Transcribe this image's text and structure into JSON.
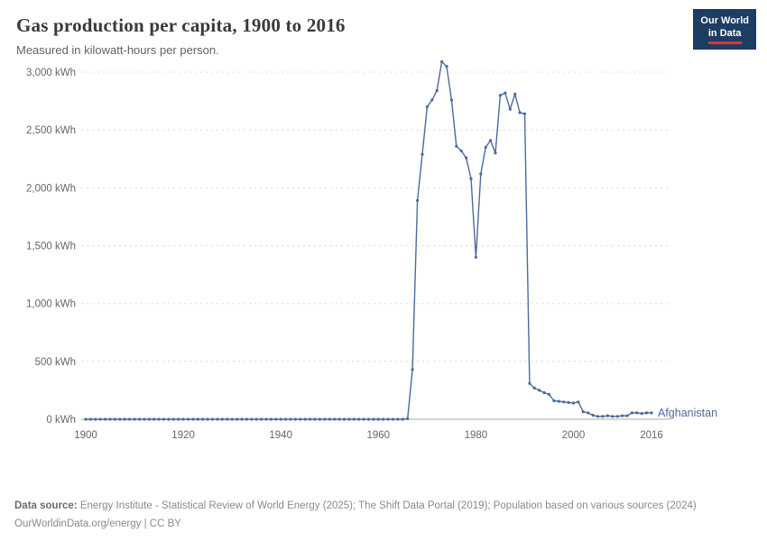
{
  "header": {
    "title": "Gas production per capita, 1900 to 2016",
    "subtitle": "Measured in kilowatt-hours per person.",
    "logo": {
      "line1": "Our World",
      "line2": "in Data"
    }
  },
  "chart_data": {
    "type": "line",
    "title": "Gas production per capita, 1900 to 2016",
    "ylabel": "kilowatt-hours per person",
    "xlim": [
      1900,
      2016
    ],
    "ylim": [
      0,
      3000
    ],
    "x_ticks": [
      1900,
      1920,
      1940,
      1960,
      1980,
      2000,
      2016
    ],
    "y_ticks": [
      0,
      500,
      1000,
      1500,
      2000,
      2500,
      3000
    ],
    "y_tick_suffix": " kWh",
    "grid": "dashed-horizontal",
    "legend_position": "end-of-line",
    "line_color": "#4C6A9C",
    "series": [
      {
        "name": "Afghanistan",
        "x": [
          1900,
          1901,
          1902,
          1903,
          1904,
          1905,
          1906,
          1907,
          1908,
          1909,
          1910,
          1911,
          1912,
          1913,
          1914,
          1915,
          1916,
          1917,
          1918,
          1919,
          1920,
          1921,
          1922,
          1923,
          1924,
          1925,
          1926,
          1927,
          1928,
          1929,
          1930,
          1931,
          1932,
          1933,
          1934,
          1935,
          1936,
          1937,
          1938,
          1939,
          1940,
          1941,
          1942,
          1943,
          1944,
          1945,
          1946,
          1947,
          1948,
          1949,
          1950,
          1951,
          1952,
          1953,
          1954,
          1955,
          1956,
          1957,
          1958,
          1959,
          1960,
          1961,
          1962,
          1963,
          1964,
          1965,
          1966,
          1967,
          1968,
          1969,
          1970,
          1971,
          1972,
          1973,
          1974,
          1975,
          1976,
          1977,
          1978,
          1979,
          1980,
          1981,
          1982,
          1983,
          1984,
          1985,
          1986,
          1987,
          1988,
          1989,
          1990,
          1991,
          1992,
          1993,
          1994,
          1995,
          1996,
          1997,
          1998,
          1999,
          2000,
          2001,
          2002,
          2003,
          2004,
          2005,
          2006,
          2007,
          2008,
          2009,
          2010,
          2011,
          2012,
          2013,
          2014,
          2015,
          2016
        ],
        "values": [
          0,
          0,
          0,
          0,
          0,
          0,
          0,
          0,
          0,
          0,
          0,
          0,
          0,
          0,
          0,
          0,
          0,
          0,
          0,
          0,
          0,
          0,
          0,
          0,
          0,
          0,
          0,
          0,
          0,
          0,
          0,
          0,
          0,
          0,
          0,
          0,
          0,
          0,
          0,
          0,
          0,
          0,
          0,
          0,
          0,
          0,
          0,
          0,
          0,
          0,
          0,
          0,
          0,
          0,
          0,
          0,
          0,
          0,
          0,
          0,
          0,
          0,
          0,
          0,
          0,
          0,
          5,
          430,
          1890,
          2290,
          2700,
          2760,
          2840,
          3090,
          3050,
          2760,
          2360,
          2320,
          2260,
          2080,
          1400,
          2120,
          2350,
          2410,
          2300,
          2800,
          2820,
          2680,
          2810,
          2650,
          2640,
          310,
          270,
          250,
          230,
          215,
          160,
          155,
          150,
          145,
          140,
          150,
          65,
          55,
          35,
          25,
          25,
          30,
          25,
          25,
          30,
          30,
          55,
          55,
          50,
          55,
          55
        ]
      }
    ]
  },
  "footer": {
    "source_label": "Data source:",
    "source_text": " Energy Institute - Statistical Review of World Energy (2025); The Shift Data Portal (2019); Population based on various sources (2024)",
    "link_text": "OurWorldinData.org/energy | CC BY"
  }
}
